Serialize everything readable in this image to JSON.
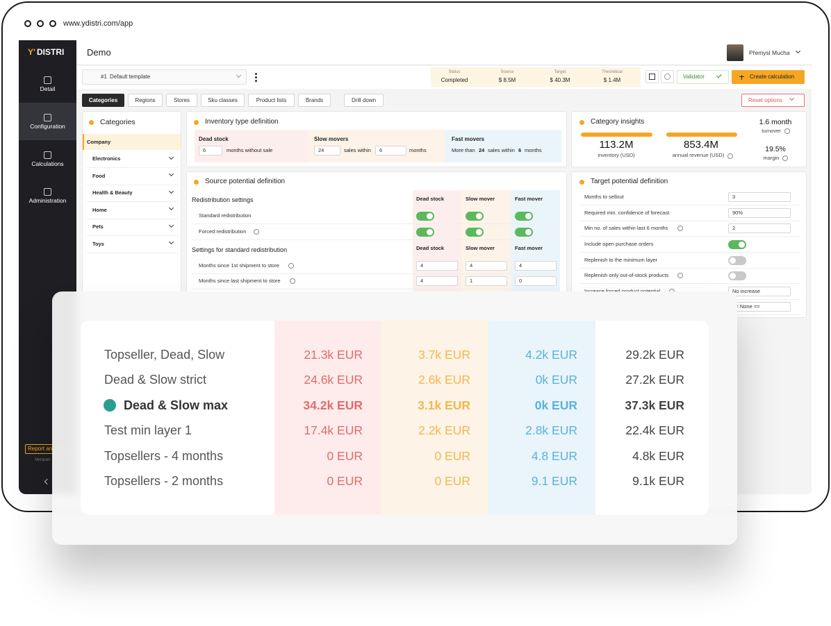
{
  "browser": {
    "url": "www.ydistri.com/app"
  },
  "sidebar": {
    "logo_mark": "Y'",
    "logo_text": "DISTRI",
    "nav": [
      {
        "label": "Detail",
        "active": false
      },
      {
        "label": "Configuration",
        "active": true
      },
      {
        "label": "Calculations",
        "active": false
      },
      {
        "label": "Administration",
        "active": false
      }
    ],
    "report": "Report an",
    "version": "Version: 5"
  },
  "header": {
    "title": "Demo",
    "user": "Přemysl Mucha"
  },
  "toolbar": {
    "template_number": "#1",
    "template_name": "Default template",
    "stats": [
      {
        "label": "Status",
        "value": "Completed"
      },
      {
        "label": "Source",
        "value": "$ 8.5M"
      },
      {
        "label": "Target",
        "value": "$ 40.3M"
      },
      {
        "label": "Theoretical",
        "value": "$ 1.4M"
      }
    ],
    "validator": "Validator",
    "create": "Create calculation"
  },
  "tabs": {
    "items": [
      "Categories",
      "Regions",
      "Stores",
      "Sku classes",
      "Product lists",
      "Brands"
    ],
    "active": 0,
    "drill_down": "Drill down",
    "reset": "Reset options"
  },
  "categories": {
    "title": "Categories",
    "items": [
      "Company",
      "Electronics",
      "Food",
      "Health & Beauty",
      "Home",
      "Pets",
      "Toys"
    ],
    "selected": 0
  },
  "inventory": {
    "title": "Inventory type definition",
    "dead": {
      "title": "Dead stock",
      "value": "6",
      "text": "months without sale"
    },
    "slow": {
      "title": "Slow movers",
      "sales": "24",
      "mid": "sales within",
      "months": "6",
      "suffix": "months"
    },
    "fast": {
      "title": "Fast movers",
      "prefix": "More than",
      "sales": "24",
      "mid": "sales within",
      "months": "6",
      "suffix": "months"
    }
  },
  "insights": {
    "title": "Category insights",
    "inventory": "113.2M",
    "inventory_label": "inventory (USD)",
    "revenue": "853.4M",
    "revenue_label": "annual revenue (USD)",
    "turnover": "1.6 month",
    "turnover_label": "turnover",
    "margin": "19.5%",
    "margin_label": "margin"
  },
  "source": {
    "title": "Source potential definition",
    "columns": [
      "Dead stock",
      "Slow mover",
      "Fast mover"
    ],
    "section1": "Redistribution settings",
    "toggle_rows": [
      {
        "label": "Standard redistribution",
        "values": [
          true,
          true,
          true
        ]
      },
      {
        "label": "Forced redistribution",
        "values": [
          true,
          true,
          true
        ]
      }
    ],
    "section2": "Settings for standard redistribution",
    "input_rows": [
      {
        "label": "Months since 1st shipment to store",
        "values": [
          "4",
          "4",
          "4"
        ]
      },
      {
        "label": "Months since last shipment to store",
        "values": [
          "4",
          "1",
          "0"
        ]
      }
    ]
  },
  "target": {
    "title": "Target potential definition",
    "rows": [
      {
        "label": "Months to sellout",
        "input": "3"
      },
      {
        "label": "Required min. confidence of forecast",
        "input": "90%"
      },
      {
        "label": "Min no. of sales within last 6 months",
        "input": "2"
      },
      {
        "label": "Include open purchase orders",
        "toggle": true
      },
      {
        "label": "Replenish to the minimum layer",
        "toggle": false
      },
      {
        "label": "Replenish only out-of-stock products",
        "toggle": false
      },
      {
        "label": "Increase forced product potential",
        "input": "No increase"
      },
      {
        "input": "== None =="
      }
    ]
  },
  "overlay": {
    "highlighted": 2,
    "rows": [
      {
        "name": "Topseller, Dead, Slow",
        "cells": [
          "21.3k EUR",
          "3.7k EUR",
          "4.2k EUR",
          "29.2k EUR"
        ]
      },
      {
        "name": "Dead & Slow strict",
        "cells": [
          "24.6k EUR",
          "2.6k EUR",
          "0k EUR",
          "27.2k EUR"
        ]
      },
      {
        "name": "Dead & Slow max",
        "cells": [
          "34.2k EUR",
          "3.1k EUR",
          "0k EUR",
          "37.3k EUR"
        ]
      },
      {
        "name": "Test min layer 1",
        "cells": [
          "17.4k EUR",
          "2.2k EUR",
          "2.8k EUR",
          "22.4k EUR"
        ]
      },
      {
        "name": "Topsellers - 4 months",
        "cells": [
          "0 EUR",
          "0 EUR",
          "4.8 EUR",
          "4.8k EUR"
        ]
      },
      {
        "name": "Topsellers - 2 months",
        "cells": [
          "0 EUR",
          "0 EUR",
          "9.1 EUR",
          "9.1k EUR"
        ]
      }
    ]
  }
}
